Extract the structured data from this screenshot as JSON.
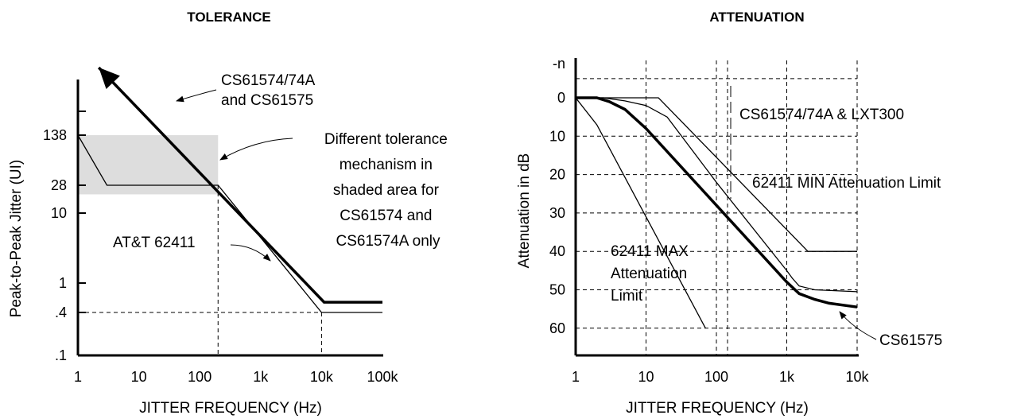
{
  "chart_data": [
    {
      "type": "line",
      "title": "TOLERANCE",
      "xlabel": "JITTER FREQUENCY (Hz)",
      "ylabel": "Peak-to-Peak Jitter (UI)",
      "x_scale": "log",
      "y_scale": "log",
      "xlim": [
        1,
        100000
      ],
      "x_ticks": [
        1,
        10,
        100,
        1000,
        10000,
        100000
      ],
      "x_tick_labels": [
        "1",
        "10",
        "100",
        "1k",
        "10k",
        "100k"
      ],
      "y_ticks": [
        0.1,
        0.4,
        1,
        10,
        28,
        138
      ],
      "y_tick_labels": [
        ".1",
        ".4",
        "1",
        "10",
        "28",
        "138"
      ],
      "grid": "dashed reference lines at y = 0.4 and x = 200, 10000",
      "shaded_region": {
        "x": [
          1,
          200
        ],
        "y": [
          20,
          138
        ],
        "color": "#dddddd"
      },
      "series": [
        {
          "style": "thick",
          "arrow": "start",
          "x": [
            2.2,
            11000,
            100000
          ],
          "y": [
            1050,
            0.55,
            0.55
          ]
        },
        {
          "style": "thin",
          "x": [
            1,
            3,
            200,
            10000,
            100000
          ],
          "y": [
            138,
            28,
            28,
            0.4,
            0.4
          ]
        }
      ],
      "annotations": [
        {
          "lines": [
            "CS61574/74A",
            "and CS61575"
          ]
        },
        {
          "lines": [
            "Different tolerance",
            "mechanism in",
            "shaded area for",
            "CS61574 and",
            "CS61574A only"
          ]
        },
        {
          "lines": [
            "AT&T 62411"
          ]
        }
      ]
    },
    {
      "type": "line",
      "title": "ATTENUATION",
      "xlabel": "JITTER FREQUENCY (Hz)",
      "ylabel": "Attenuation in dB",
      "x_scale": "log",
      "xlim": [
        1,
        10000
      ],
      "x_ticks": [
        1,
        10,
        100,
        1000,
        10000
      ],
      "x_tick_labels": [
        "1",
        "10",
        "100",
        "1k",
        "10k"
      ],
      "y_ticks": [
        "-n",
        0,
        10,
        20,
        30,
        40,
        50,
        60
      ],
      "y_tick_labels": [
        "-n",
        "0",
        "10",
        "20",
        "30",
        "40",
        "50",
        "60"
      ],
      "y_inverted": true,
      "grid": "dashed",
      "series": [
        {
          "name": "CS61575",
          "style": "thick",
          "x": [
            1,
            2,
            3,
            5,
            10,
            100,
            1000,
            1500,
            2500,
            4000,
            10000
          ],
          "y": [
            0,
            0,
            1,
            3,
            8,
            28,
            48,
            51,
            52.5,
            53.5,
            54.5
          ]
        },
        {
          "name": "CS61574/74A & LXT300",
          "style": "thin",
          "x": [
            1,
            2.5,
            5,
            10,
            20,
            100,
            1000,
            1200,
            1500,
            2500,
            10000
          ],
          "y": [
            0,
            0,
            0.8,
            2,
            5,
            22,
            45,
            47,
            49,
            50,
            50.5
          ]
        },
        {
          "name": "62411 MIN Attenuation Limit",
          "style": "thin",
          "x": [
            1,
            15,
            2000,
            10000
          ],
          "y": [
            0,
            0,
            40,
            40
          ]
        },
        {
          "name": "62411 MAX Attenuation Limit",
          "style": "thin",
          "x": [
            1,
            2,
            70
          ],
          "y": [
            0,
            7,
            60
          ]
        }
      ],
      "annotations": [
        {
          "lines": [
            "CS61574/74A & LXT300"
          ]
        },
        {
          "lines": [
            "62411 MIN Attenuation Limit"
          ]
        },
        {
          "lines": [
            "62411 MAX",
            "Attenuation",
            "Limit"
          ]
        },
        {
          "lines": [
            "CS61575"
          ]
        }
      ]
    }
  ]
}
